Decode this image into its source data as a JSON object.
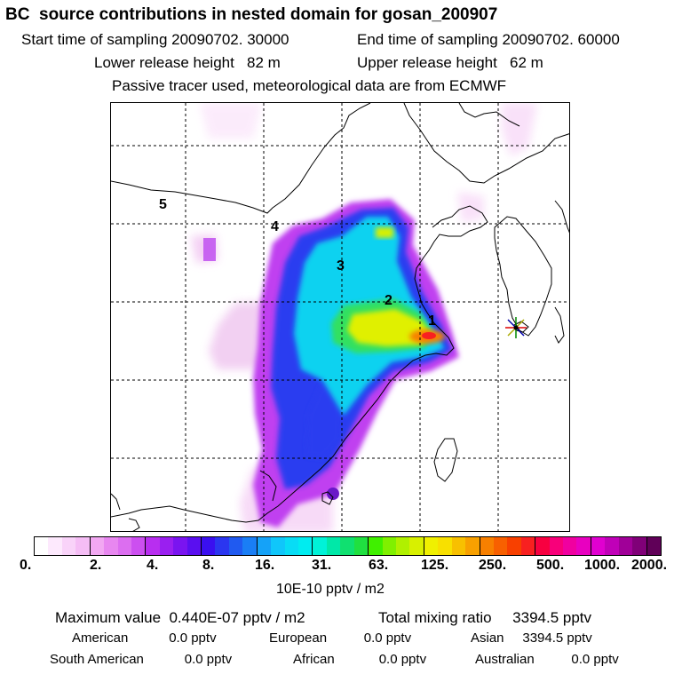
{
  "header": {
    "title": "BC  source contributions in nested domain for gosan_200907",
    "start_time_label": "Start time of sampling 20090702. 30000",
    "end_time_label": "End time of sampling 20090702. 60000",
    "lower_height_label": "Lower release height   82 m",
    "upper_height_label": "Upper release height   62 m",
    "tracer_note": "Passive tracer used, meteorological data are from ECMWF"
  },
  "map": {
    "region_labels": [
      "1",
      "2",
      "3",
      "4",
      "5"
    ],
    "receptor_marker": "star-icon"
  },
  "colorbar": {
    "ticks": [
      "0.",
      "2.",
      "4.",
      "8.",
      "16.",
      "31.",
      "63.",
      "125.",
      "250.",
      "500.",
      "1000.",
      "2000."
    ],
    "units": "10E-10 pptv / m2",
    "colors": [
      "#ffffff",
      "#fde9fd",
      "#f9d3f9",
      "#f5bdf5",
      "#f2a8f2",
      "#e887f0",
      "#dc6ef0",
      "#cc4ff0",
      "#b82ef0",
      "#9a1ff0",
      "#7a14f0",
      "#5a0ff0",
      "#3a0ff0",
      "#2b36f0",
      "#205af0",
      "#1a7ef5",
      "#15a2f8",
      "#10c6fa",
      "#08dcf5",
      "#00ecf0",
      "#00f2d8",
      "#00e8a8",
      "#10e070",
      "#20e040",
      "#40f000",
      "#80f000",
      "#b0f000",
      "#d8f000",
      "#f0f000",
      "#f8e000",
      "#f8c000",
      "#f8a000",
      "#f88000",
      "#f86000",
      "#f84000",
      "#f82020",
      "#f80040",
      "#f8007a",
      "#f000a0",
      "#e800c0",
      "#e000d0",
      "#c000b8",
      "#a00098",
      "#800078",
      "#600058"
    ]
  },
  "stats": {
    "max_label": "Maximum value  0.440E-07 pptv / m2",
    "total_label": "Total mixing ratio     3394.5 pptv",
    "american": "American           0.0 pptv",
    "european": "European          0.0 pptv",
    "asian": "Asian     3394.5 pptv",
    "south_american": "South American           0.0 pptv",
    "african": "African            0.0 pptv",
    "australian": "Australian          0.0 pptv"
  }
}
